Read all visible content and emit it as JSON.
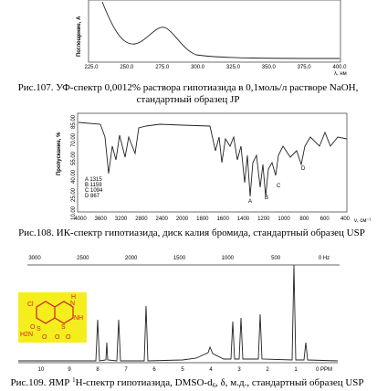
{
  "uv": {
    "y_label": "Поглощение, А",
    "x_label": "λ, нм",
    "x_ticks": [
      "225.0",
      "250.0",
      "275.0",
      "300.0",
      "325.0",
      "350.0",
      "375.0",
      "400.0"
    ],
    "caption": "Рис.107. УФ-спектр 0,0012% раствора гипотиазида в 0,1моль/л растворе NaOH, стандартный образец JP"
  },
  "ir": {
    "y_label": "Пропускание, %",
    "x_label": "ν, см⁻¹",
    "y_ticks": [
      "85.00",
      "70.00",
      "55.00",
      "40.00",
      "25.00",
      "10.00"
    ],
    "x_ticks": [
      "4000",
      "3600",
      "3200",
      "2800",
      "2400",
      "2000",
      "1800",
      "1600",
      "1400",
      "1200",
      "1000",
      "800",
      "600",
      "400"
    ],
    "peak_table": [
      "A 1315",
      "B 1159",
      "C 1094",
      "D 867"
    ],
    "peaks": [
      "A",
      "B",
      "C",
      "D"
    ],
    "caption": "Рис.108. ИК-спектр гипотиазида, диск калия бромида, стандартный образец USP"
  },
  "nmr": {
    "hz_ticks": [
      "3000",
      "2500",
      "2000",
      "1500",
      "1000",
      "500",
      "0 Hz"
    ],
    "ppm_ticks": [
      "10",
      "9",
      "8",
      "7",
      "6",
      "5",
      "4",
      "3",
      "2",
      "1",
      "0 PPM"
    ],
    "structure": [
      "Cl",
      "H",
      "N",
      "NH",
      "H2N",
      "O",
      "S",
      "O",
      "S",
      "O",
      "O"
    ],
    "caption": [
      "Рис.109. ЯМР ",
      "1",
      "H-спектр гипотиазида, DMSO-d",
      "6",
      ", δ, м.д., стандартный образец USP"
    ]
  }
}
